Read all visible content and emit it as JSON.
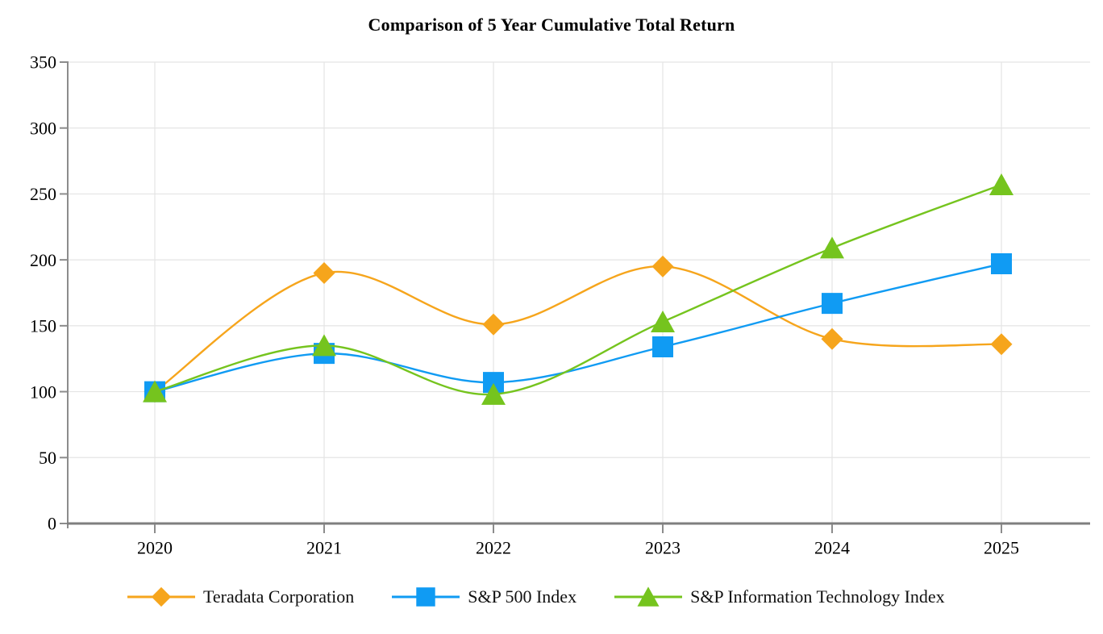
{
  "chart_data": {
    "type": "line",
    "title": "Comparison of 5 Year Cumulative Total Return",
    "categories": [
      "2020",
      "2021",
      "2022",
      "2023",
      "2024",
      "2025"
    ],
    "series": [
      {
        "name": "Teradata Corporation",
        "color": "#F6A51C",
        "marker": "diamond",
        "values": [
          100,
          190,
          151,
          195,
          140,
          136
        ]
      },
      {
        "name": "S&P 500 Index",
        "color": "#109BF3",
        "marker": "square",
        "values": [
          100,
          129,
          107,
          134,
          167,
          197
        ]
      },
      {
        "name": "S&P Information Technology Index",
        "color": "#75C41E",
        "marker": "triangle",
        "values": [
          100,
          135,
          98,
          153,
          209,
          257
        ]
      }
    ],
    "xlabel": "",
    "ylabel": "",
    "ylim": [
      0,
      350
    ],
    "ytick_step": 50,
    "grid": true,
    "legend_position": "bottom",
    "colors": {
      "grid_line": "#E4E4E4",
      "y_axis_line": "#8C8C8C",
      "x_axis_line": "#7F7F7F",
      "tick_text": "#000000"
    }
  }
}
